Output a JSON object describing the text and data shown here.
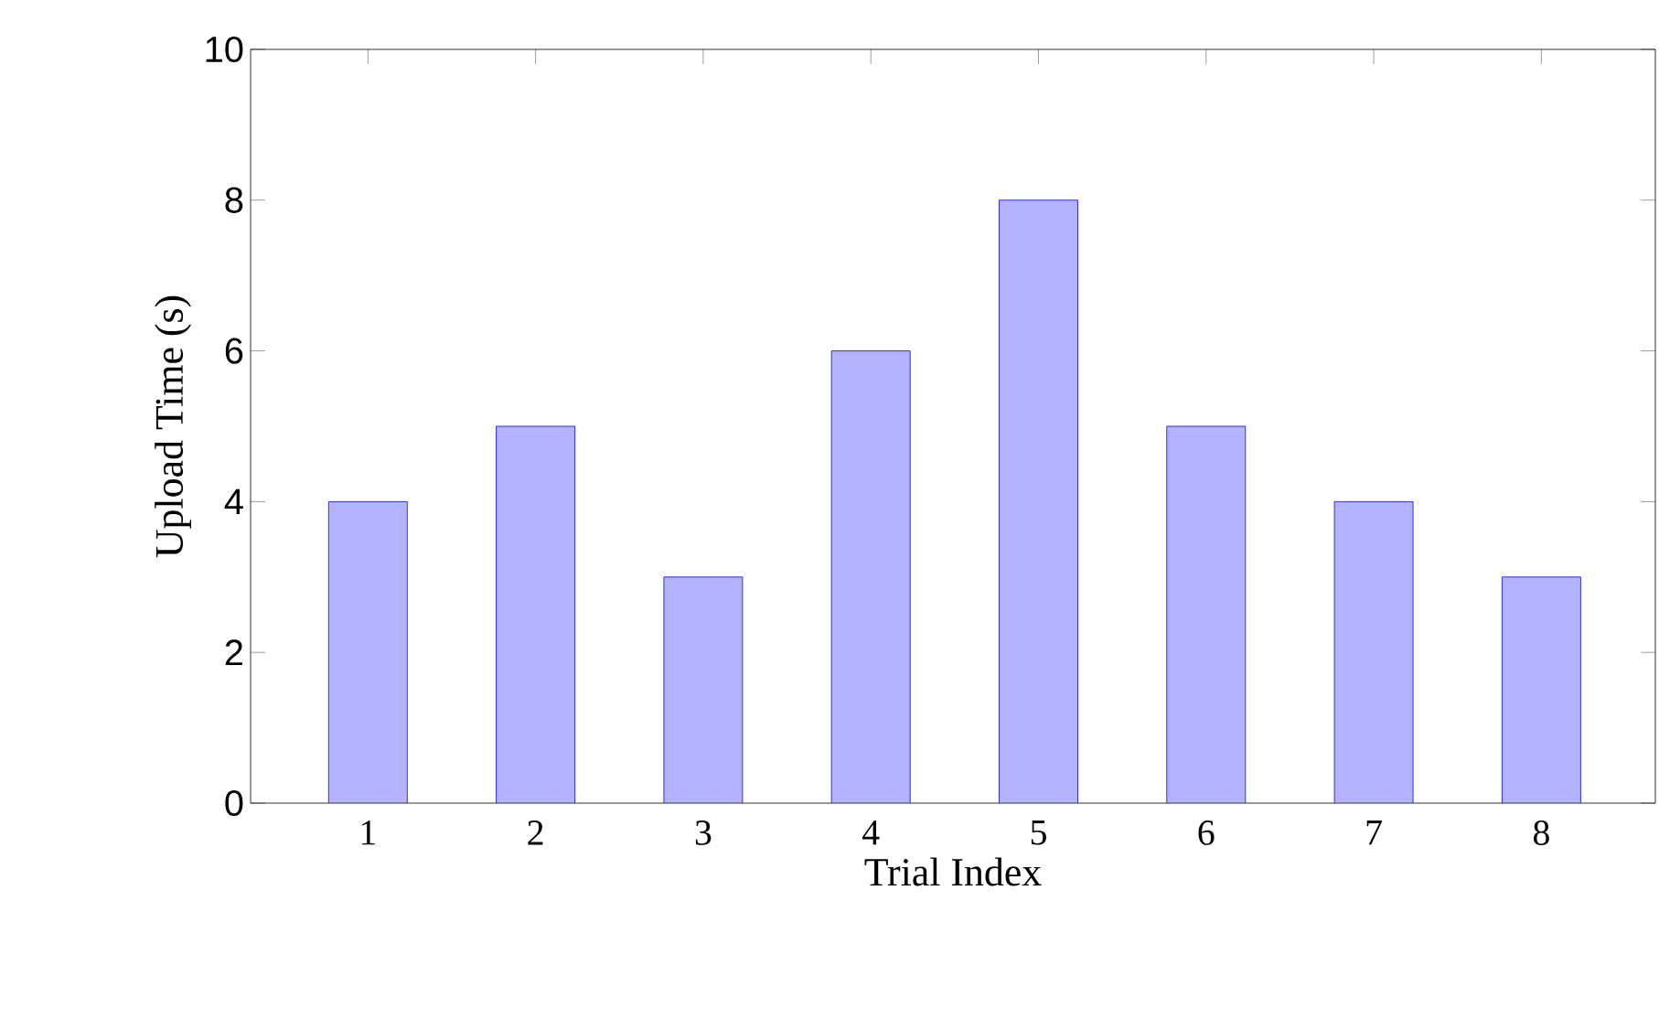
{
  "chart_data": {
    "type": "bar",
    "xlabel": "Trial Index",
    "ylabel": "Upload Time (s)",
    "categories": [
      "1",
      "2",
      "3",
      "4",
      "5",
      "6",
      "7",
      "8"
    ],
    "values": [
      4,
      5,
      3,
      6,
      8,
      5,
      4,
      3
    ],
    "color": "#b3b3ff",
    "ylim": [
      0,
      10
    ],
    "yticks": [
      0,
      2,
      4,
      6,
      8,
      10
    ]
  }
}
